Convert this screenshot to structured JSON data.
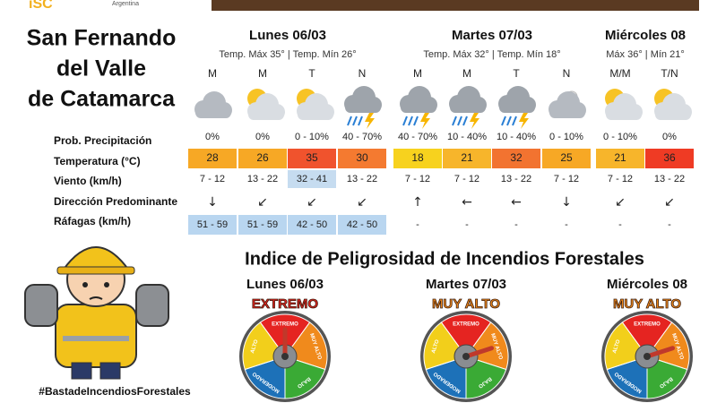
{
  "logo": {
    "subtitle": "Argentina"
  },
  "city": [
    "San Fernando",
    "del Valle",
    "de Catamarca"
  ],
  "row_labels": [
    "Prob. Precipitación",
    "Temperatura (°C)",
    "Viento (km/h)",
    "Dirección Predominante",
    "Ráfagas (km/h)"
  ],
  "days": [
    {
      "name": "Lunes 06/03",
      "temps": "Temp. Máx 35° | Temp. Mín 26°",
      "periods": [
        "M",
        "M",
        "T",
        "N"
      ]
    },
    {
      "name": "Martes 07/03",
      "temps": "Temp. Máx 32° | Temp. Mín 18°",
      "periods": [
        "M",
        "M",
        "T",
        "N"
      ]
    },
    {
      "name": "Miércoles 08",
      "temps": "Máx 36° | Mín 21°",
      "periods": [
        "M/M",
        "T/N"
      ]
    }
  ],
  "precipitation": [
    "0%",
    "0%",
    "0 - 10%",
    "40 - 70%",
    "40 - 70%",
    "10 - 40%",
    "10 - 40%",
    "0 - 10%",
    "0 - 10%",
    "0%"
  ],
  "temperature": {
    "values": [
      "28",
      "26",
      "35",
      "30",
      "18",
      "21",
      "32",
      "25",
      "21",
      "36"
    ],
    "colors": [
      "#f7a825",
      "#f7a825",
      "#f0532d",
      "#f47a30",
      "#f7d21e",
      "#f7b52b",
      "#f27330",
      "#f7a825",
      "#f7b52b",
      "#ef3b24"
    ]
  },
  "wind": {
    "values": [
      "7 - 12",
      "13 - 22",
      "32 - 41",
      "13 - 22",
      "7 - 12",
      "7 - 12",
      "13 - 22",
      "7 - 12",
      "7 - 12",
      "13 - 22"
    ],
    "colors": [
      "#ffffff",
      "#ffffff",
      "#c6dcf0",
      "#ffffff",
      "#ffffff",
      "#ffffff",
      "#ffffff",
      "#ffffff",
      "#ffffff",
      "#ffffff"
    ]
  },
  "direction": [
    "↓",
    "↙",
    "↙",
    "↙",
    "↑",
    "←",
    "←",
    "↓",
    "↙",
    "↙"
  ],
  "gusts": {
    "values": [
      "51 - 59",
      "51 - 59",
      "42 - 50",
      "42 - 50",
      "-",
      "-",
      "-",
      "-",
      "-",
      "-"
    ],
    "colors": [
      "#b9d6f0",
      "#b9d6f0",
      "#b9d6f0",
      "#b9d6f0",
      "#ffffff",
      "#ffffff",
      "#ffffff",
      "#ffffff",
      "#ffffff",
      "#ffffff"
    ]
  },
  "fire_index": {
    "title": "Indice de Peligrosidad de Incendios Forestales",
    "segments": [
      {
        "label": "EXTREMO",
        "color": "#e52421"
      },
      {
        "label": "MUY ALTO",
        "color": "#f08a1c"
      },
      {
        "label": "BAJO",
        "color": "#3aaa35"
      },
      {
        "label": "MODERADO",
        "color": "#1d71b8"
      },
      {
        "label": "ALTO",
        "color": "#f2cf1b"
      }
    ],
    "gauges": [
      {
        "day": "Lunes 06/03",
        "level": "EXTREMO"
      },
      {
        "day": "Martes 07/03",
        "level": "MUY ALTO"
      },
      {
        "day": "Miércoles 08",
        "level": "MUY ALTO"
      }
    ]
  },
  "hashtag": "#BastadeIncendiosForestales"
}
